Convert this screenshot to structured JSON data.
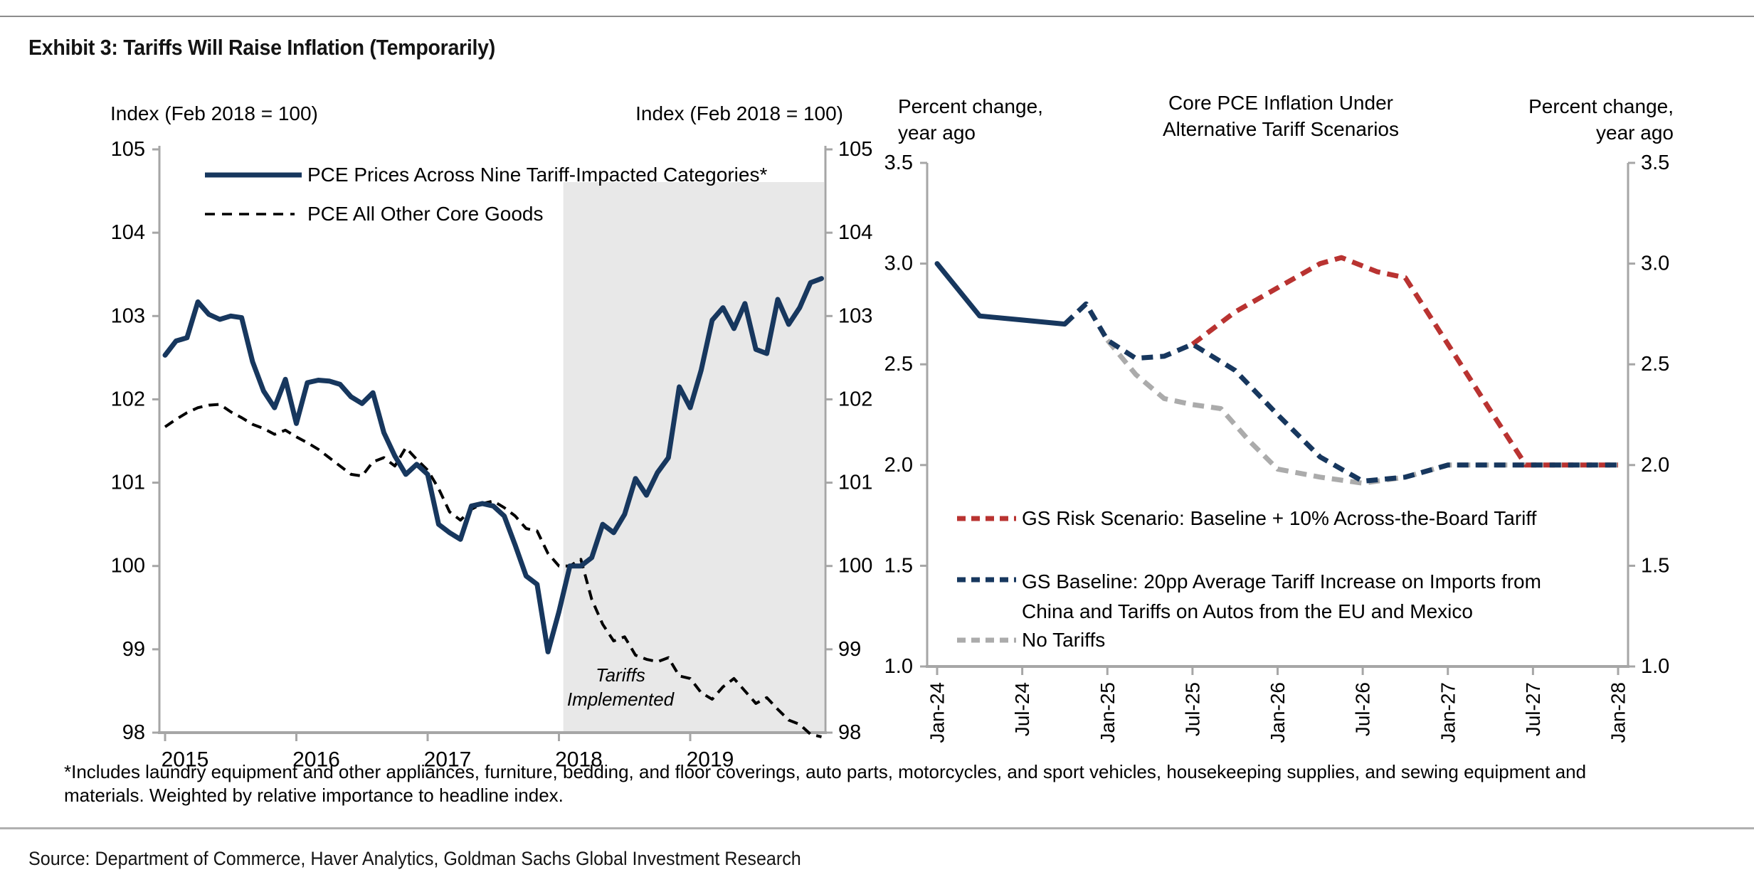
{
  "page": {
    "title": "Exhibit 3: Tariffs Will Raise Inflation (Temporarily)",
    "footnote_line1": "*Includes laundry equipment and other appliances, furniture, bedding, and floor coverings, auto parts, motorcycles, and sport vehicles, housekeeping supplies, and sewing equipment and",
    "footnote_line2": "materials. Weighted by relative importance to headline index.",
    "source": "Source: Department of Commerce, Haver Analytics, Goldman Sachs Global Investment Research"
  },
  "colors": {
    "navy": "#17375E",
    "red": "#B93331",
    "gray_line": "#ABABAB",
    "black": "#000000",
    "shade": "#E8E8E8",
    "axis": "#A6A6A6",
    "rule": "#8C8C8C"
  },
  "chart_data": [
    {
      "type": "line",
      "axis_label_left": "Index (Feb 2018 = 100)",
      "axis_label_right": "Index (Feb 2018 = 100)",
      "ylim": [
        98,
        105
      ],
      "yticks": [
        105,
        104,
        103,
        102,
        101,
        100,
        99,
        98
      ],
      "xticks": [
        {
          "label": "2015",
          "month": 0
        },
        {
          "label": "2016",
          "month": 12
        },
        {
          "label": "2017",
          "month": 24
        },
        {
          "label": "2018",
          "month": 36
        },
        {
          "label": "2019",
          "month": 48
        }
      ],
      "x_start": "Jan 2015",
      "x_step": "1 month",
      "shaded_region": {
        "start_month": 36.4,
        "label_lines": [
          "Tariffs",
          "Implemented"
        ]
      },
      "series": [
        {
          "name_lines": [
            "PCE Prices Across Nine Tariff-Impacted Categories*"
          ],
          "color": "#17375E",
          "style": "solid",
          "line_width": 7,
          "values": [
            102.53,
            102.7,
            102.74,
            103.17,
            103.02,
            102.96,
            103.0,
            102.98,
            102.45,
            102.1,
            101.9,
            102.24,
            101.71,
            102.2,
            102.23,
            102.22,
            102.18,
            102.03,
            101.95,
            102.08,
            101.6,
            101.32,
            101.1,
            101.22,
            101.1,
            100.5,
            100.4,
            100.32,
            100.72,
            100.75,
            100.72,
            100.6,
            100.25,
            99.88,
            99.78,
            98.97,
            99.45,
            100.0,
            100.0,
            100.1,
            100.5,
            100.4,
            100.62,
            101.05,
            100.85,
            101.12,
            101.3,
            102.15,
            101.9,
            102.35,
            102.95,
            103.1,
            102.85,
            103.15,
            102.6,
            102.55,
            103.2,
            102.9,
            103.1,
            103.4,
            103.45
          ]
        },
        {
          "name_lines": [
            "PCE All Other Core Goods"
          ],
          "color": "#000000",
          "style": "dashed",
          "line_width": 4,
          "values": [
            101.67,
            101.76,
            101.84,
            101.9,
            101.93,
            101.94,
            101.85,
            101.78,
            101.7,
            101.65,
            101.58,
            101.63,
            101.55,
            101.48,
            101.4,
            101.3,
            101.2,
            101.1,
            101.08,
            101.25,
            101.3,
            101.2,
            101.42,
            101.28,
            101.15,
            100.93,
            100.65,
            100.55,
            100.68,
            100.75,
            100.78,
            100.7,
            100.6,
            100.45,
            100.42,
            100.15,
            100.0,
            100.0,
            100.08,
            99.6,
            99.3,
            99.1,
            99.15,
            98.93,
            98.88,
            98.85,
            98.9,
            98.68,
            98.65,
            98.48,
            98.4,
            98.55,
            98.65,
            98.5,
            98.35,
            98.42,
            98.28,
            98.15,
            98.1,
            97.98,
            97.95
          ]
        }
      ]
    },
    {
      "type": "line",
      "title_lines": [
        "Core PCE Inflation Under",
        "Alternative Tariff Scenarios"
      ],
      "ylabel_lines": [
        "Percent change,",
        "year ago"
      ],
      "ylim": [
        1.0,
        3.5
      ],
      "yticks": [
        "3.5",
        "3.0",
        "2.5",
        "2.0",
        "1.5",
        "1.0"
      ],
      "xticks": [
        {
          "label": "Jan-24",
          "month": 0
        },
        {
          "label": "Jul-24",
          "month": 6
        },
        {
          "label": "Jan-25",
          "month": 12
        },
        {
          "label": "Jul-25",
          "month": 18
        },
        {
          "label": "Jan-26",
          "month": 24
        },
        {
          "label": "Jul-26",
          "month": 30
        },
        {
          "label": "Jan-27",
          "month": 36
        },
        {
          "label": "Jul-27",
          "month": 42
        },
        {
          "label": "Jan-28",
          "month": 48
        }
      ],
      "series": [
        {
          "name_lines": [
            "GS Risk Scenario: Baseline + 10% Across-the-Board Tariff"
          ],
          "color": "#B93331",
          "style": "dashed",
          "line_width": 7,
          "x": [
            18,
            21,
            24,
            27,
            28.5,
            31,
            33,
            36,
            39,
            41.5,
            45,
            48
          ],
          "y": [
            2.6,
            2.76,
            2.88,
            3.0,
            3.03,
            2.96,
            2.93,
            2.6,
            2.27,
            2.0,
            2.0,
            2.0
          ]
        },
        {
          "name_lines": [
            "GS Baseline: 20pp Average Tariff Increase on Imports from",
            "China and Tariffs on Autos from the EU and Mexico"
          ],
          "color": "#17375E",
          "style": "solid_then_dashed",
          "solid_until_month": 9,
          "line_width": 7,
          "x": [
            0,
            3,
            6,
            9,
            10.5,
            12,
            14,
            16,
            18,
            21,
            24,
            27,
            30,
            33,
            36,
            39,
            42,
            45,
            48
          ],
          "y": [
            3.0,
            2.74,
            2.72,
            2.7,
            2.8,
            2.62,
            2.53,
            2.54,
            2.6,
            2.47,
            2.25,
            2.04,
            1.92,
            1.94,
            2.0,
            2.0,
            2.0,
            2.0,
            2.0
          ]
        },
        {
          "name_lines": [
            "No Tariffs"
          ],
          "color": "#ABABAB",
          "style": "dashed",
          "line_width": 7,
          "x": [
            12,
            14,
            16,
            18,
            20,
            22,
            24,
            27,
            30,
            33,
            36,
            39,
            42,
            45,
            48
          ],
          "y": [
            2.62,
            2.45,
            2.33,
            2.3,
            2.28,
            2.12,
            1.98,
            1.94,
            1.91,
            1.94,
            2.0,
            2.0,
            2.0,
            2.0,
            2.0
          ]
        }
      ]
    }
  ]
}
